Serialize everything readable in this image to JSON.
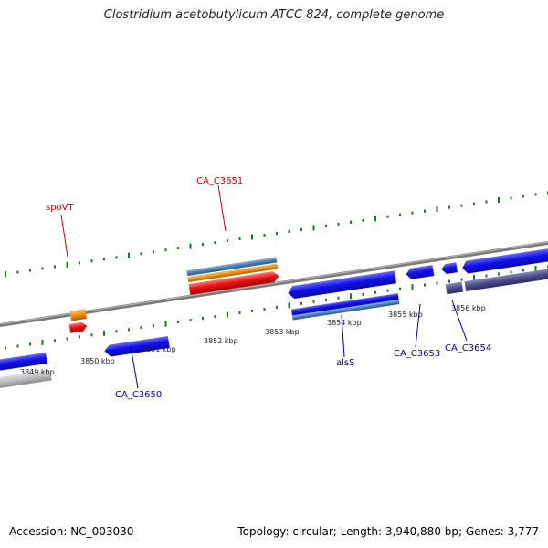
{
  "title": "Clostridium acetobutylicum ATCC 824, complete genome",
  "footer": {
    "accession": "Accession: NC_003030",
    "topology": "Topology: circular; Length: 3,940,880 bp; Genes: 3,777"
  },
  "kbp_labels": [
    "3849 kbp",
    "3850 kbp",
    "3851 kbp",
    "3852 kbp",
    "3853 kbp",
    "3854 kbp",
    "3855 kbp",
    "3856 kbp"
  ],
  "gene_labels": {
    "spoVT": "spoVT",
    "ca_c3651": "CA_C3651",
    "ca_c3650": "CA_C3650",
    "alsS": "alsS",
    "ca_c3653": "CA_C3653",
    "ca_c3654": "CA_C3654"
  },
  "colors": {
    "gene_forward": "#1111ee",
    "gene_red": "#ee1111",
    "orange": "#f09010",
    "steel_blue": "#4682b4",
    "slate": "#4b4a8a",
    "backbone": "#7a7a7a",
    "tick": "#1a7a1a",
    "label_red": "#cc0000",
    "label_blue": "#0000aa"
  }
}
